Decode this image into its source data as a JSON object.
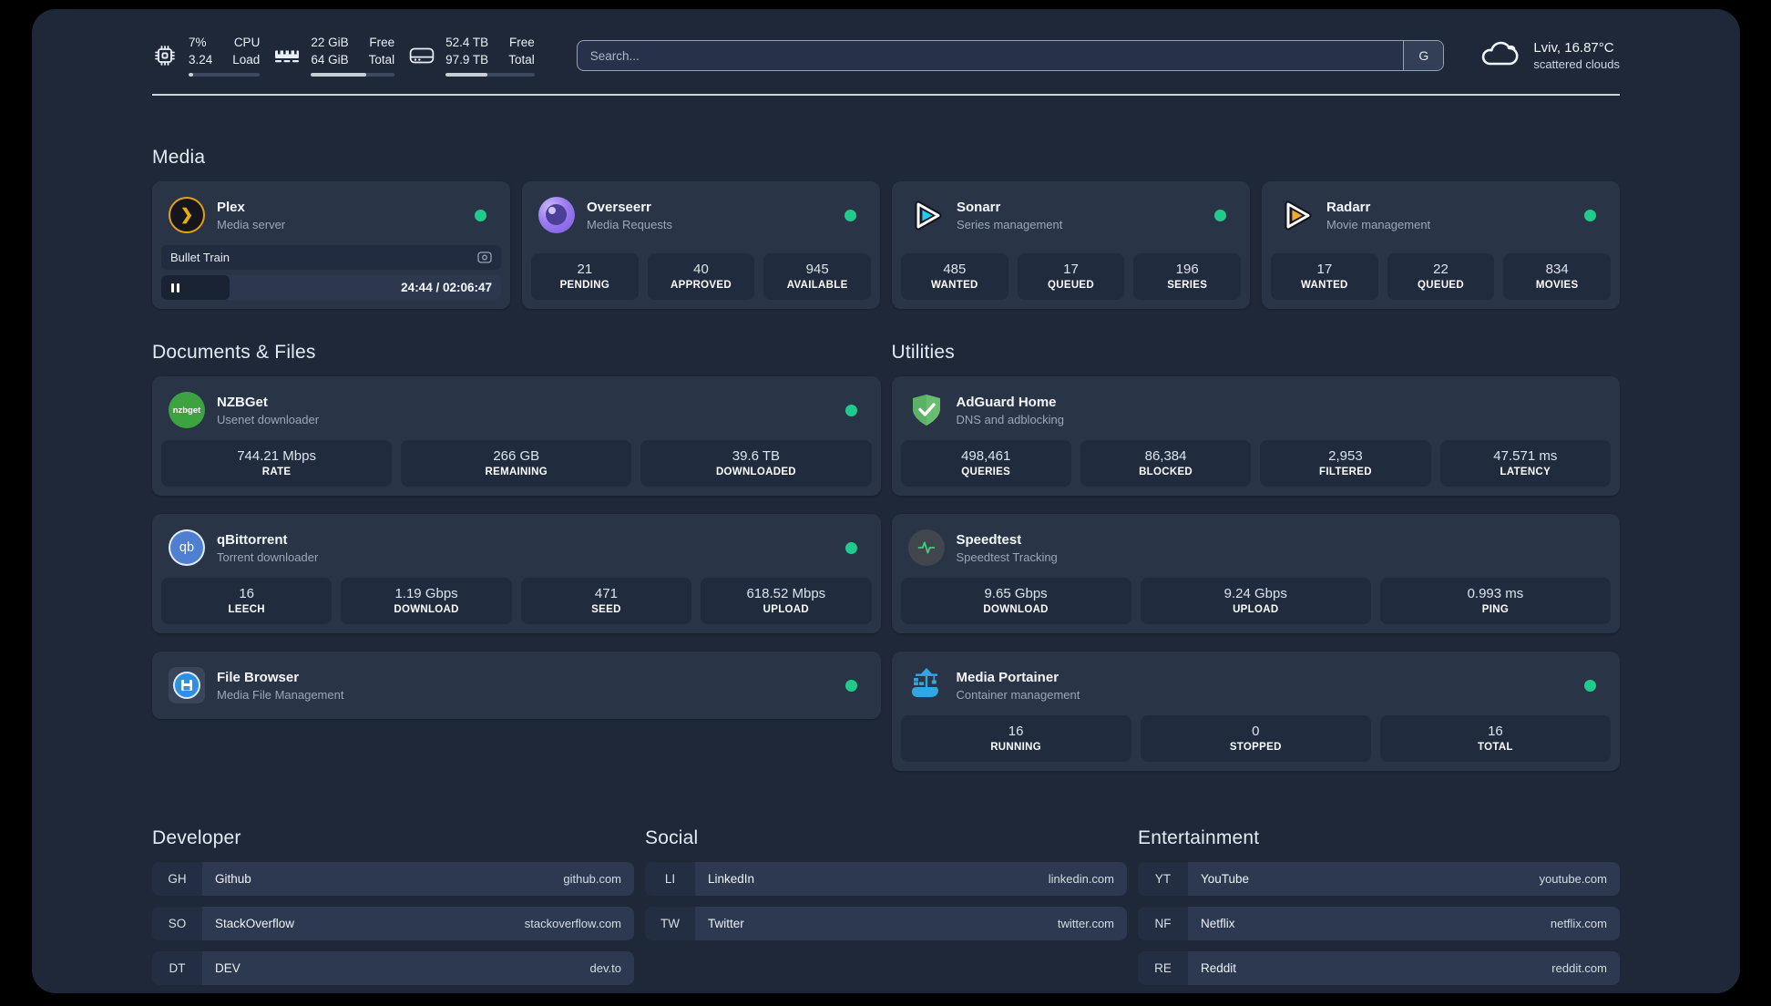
{
  "topbar": {
    "metrics": [
      {
        "icon": "cpu-icon",
        "col1": [
          "7%",
          "3.24"
        ],
        "col2": [
          "CPU",
          "Load"
        ],
        "progress": 7
      },
      {
        "icon": "ram-icon",
        "col1": [
          "22 GiB",
          "64 GiB"
        ],
        "col2": [
          "Free",
          "Total"
        ],
        "progress": 66
      },
      {
        "icon": "disk-icon",
        "col1": [
          "52.4 TB",
          "97.9 TB"
        ],
        "col2": [
          "Free",
          "Total"
        ],
        "progress": 47
      }
    ],
    "search": {
      "placeholder": "Search...",
      "provider_label": "G"
    },
    "weather": {
      "icon": "cloud-icon",
      "line1": "Lviv, 16.87°C",
      "line2": "scattered clouds"
    }
  },
  "sections": {
    "media": {
      "title": "Media",
      "plex": {
        "name": "Plex",
        "desc": "Media server",
        "online": true,
        "player": {
          "title": "Bullet Train",
          "time": "24:44 / 02:06:47",
          "progress": 20
        }
      },
      "overseerr": {
        "name": "Overseerr",
        "desc": "Media Requests",
        "online": true,
        "stats": [
          {
            "value": "21",
            "label": "PENDING"
          },
          {
            "value": "40",
            "label": "APPROVED"
          },
          {
            "value": "945",
            "label": "AVAILABLE"
          }
        ]
      },
      "sonarr": {
        "name": "Sonarr",
        "desc": "Series management",
        "online": true,
        "stats": [
          {
            "value": "485",
            "label": "WANTED"
          },
          {
            "value": "17",
            "label": "QUEUED"
          },
          {
            "value": "196",
            "label": "SERIES"
          }
        ]
      },
      "radarr": {
        "name": "Radarr",
        "desc": "Movie management",
        "online": true,
        "stats": [
          {
            "value": "17",
            "label": "WANTED"
          },
          {
            "value": "22",
            "label": "QUEUED"
          },
          {
            "value": "834",
            "label": "MOVIES"
          }
        ]
      }
    },
    "documents": {
      "title": "Documents & Files",
      "nzbget": {
        "name": "NZBGet",
        "desc": "Usenet downloader",
        "online": true,
        "stats": [
          {
            "value": "744.21 Mbps",
            "label": "RATE"
          },
          {
            "value": "266 GB",
            "label": "REMAINING"
          },
          {
            "value": "39.6 TB",
            "label": "DOWNLOADED"
          }
        ]
      },
      "qbittorrent": {
        "name": "qBittorrent",
        "desc": "Torrent downloader",
        "online": true,
        "stats": [
          {
            "value": "16",
            "label": "LEECH"
          },
          {
            "value": "1.19 Gbps",
            "label": "DOWNLOAD"
          },
          {
            "value": "471",
            "label": "SEED"
          },
          {
            "value": "618.52 Mbps",
            "label": "UPLOAD"
          }
        ]
      },
      "filebrowser": {
        "name": "File Browser",
        "desc": "Media File Management",
        "online": true
      }
    },
    "utilities": {
      "title": "Utilities",
      "adguard": {
        "name": "AdGuard Home",
        "desc": "DNS and adblocking",
        "stats": [
          {
            "value": "498,461",
            "label": "QUERIES"
          },
          {
            "value": "86,384",
            "label": "BLOCKED"
          },
          {
            "value": "2,953",
            "label": "FILTERED"
          },
          {
            "value": "47.571 ms",
            "label": "LATENCY"
          }
        ]
      },
      "speedtest": {
        "name": "Speedtest",
        "desc": "Speedtest Tracking",
        "stats": [
          {
            "value": "9.65 Gbps",
            "label": "DOWNLOAD"
          },
          {
            "value": "9.24 Gbps",
            "label": "UPLOAD"
          },
          {
            "value": "0.993 ms",
            "label": "PING"
          }
        ]
      },
      "portainer": {
        "name": "Media Portainer",
        "desc": "Container management",
        "online": true,
        "stats": [
          {
            "value": "16",
            "label": "RUNNING"
          },
          {
            "value": "0",
            "label": "STOPPED"
          },
          {
            "value": "16",
            "label": "TOTAL"
          }
        ]
      }
    },
    "links": {
      "developer": {
        "title": "Developer",
        "items": [
          {
            "abbr": "GH",
            "name": "Github",
            "url": "github.com"
          },
          {
            "abbr": "SO",
            "name": "StackOverflow",
            "url": "stackoverflow.com"
          },
          {
            "abbr": "DT",
            "name": "DEV",
            "url": "dev.to"
          }
        ]
      },
      "social": {
        "title": "Social",
        "items": [
          {
            "abbr": "LI",
            "name": "LinkedIn",
            "url": "linkedin.com"
          },
          {
            "abbr": "TW",
            "name": "Twitter",
            "url": "twitter.com"
          }
        ]
      },
      "entertainment": {
        "title": "Entertainment",
        "items": [
          {
            "abbr": "YT",
            "name": "YouTube",
            "url": "youtube.com"
          },
          {
            "abbr": "NF",
            "name": "Netflix",
            "url": "netflix.com"
          },
          {
            "abbr": "RE",
            "name": "Reddit",
            "url": "reddit.com"
          }
        ]
      }
    }
  },
  "palette": {
    "background": "#1f2838",
    "card": "#293447",
    "stat_box": "#212b3e",
    "status_online": "#1fcb8c"
  }
}
